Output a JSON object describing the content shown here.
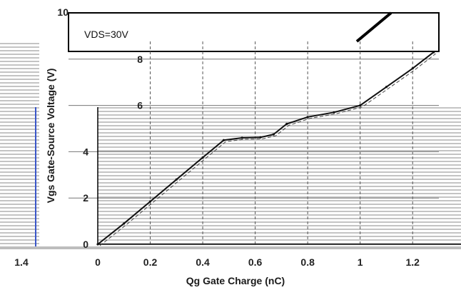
{
  "chart_data": {
    "type": "line",
    "title": "",
    "annotation": "VDS=30V",
    "xlabel": "Qg Gate Charge (nC)",
    "ylabel": "Vgs Gate-Source Voltage (V)",
    "xlim": [
      0,
      1.3
    ],
    "ylim": [
      0,
      10
    ],
    "x_ticks": [
      "0",
      "0.2",
      "0.4",
      "0.6",
      "0.8",
      "1",
      "1.2"
    ],
    "y_ticks": [
      "0",
      "2",
      "4",
      "6",
      "8",
      "10"
    ],
    "extra_tick_left": "1.4",
    "grid": true,
    "series": [
      {
        "x": [
          0,
          0.1,
          0.2,
          0.3,
          0.4,
          0.48,
          0.55,
          0.62,
          0.67,
          0.72,
          0.8,
          0.9,
          1.0,
          1.1,
          1.2,
          1.28
        ],
        "y": [
          0,
          0.9,
          1.85,
          2.8,
          3.75,
          4.5,
          4.6,
          4.62,
          4.75,
          5.2,
          5.5,
          5.7,
          6.0,
          6.8,
          7.6,
          8.3
        ]
      }
    ],
    "colors": {
      "line": "#111111",
      "grid": "#555555",
      "hatch": "#bdbdbd",
      "accent": "#d22b2b"
    }
  }
}
